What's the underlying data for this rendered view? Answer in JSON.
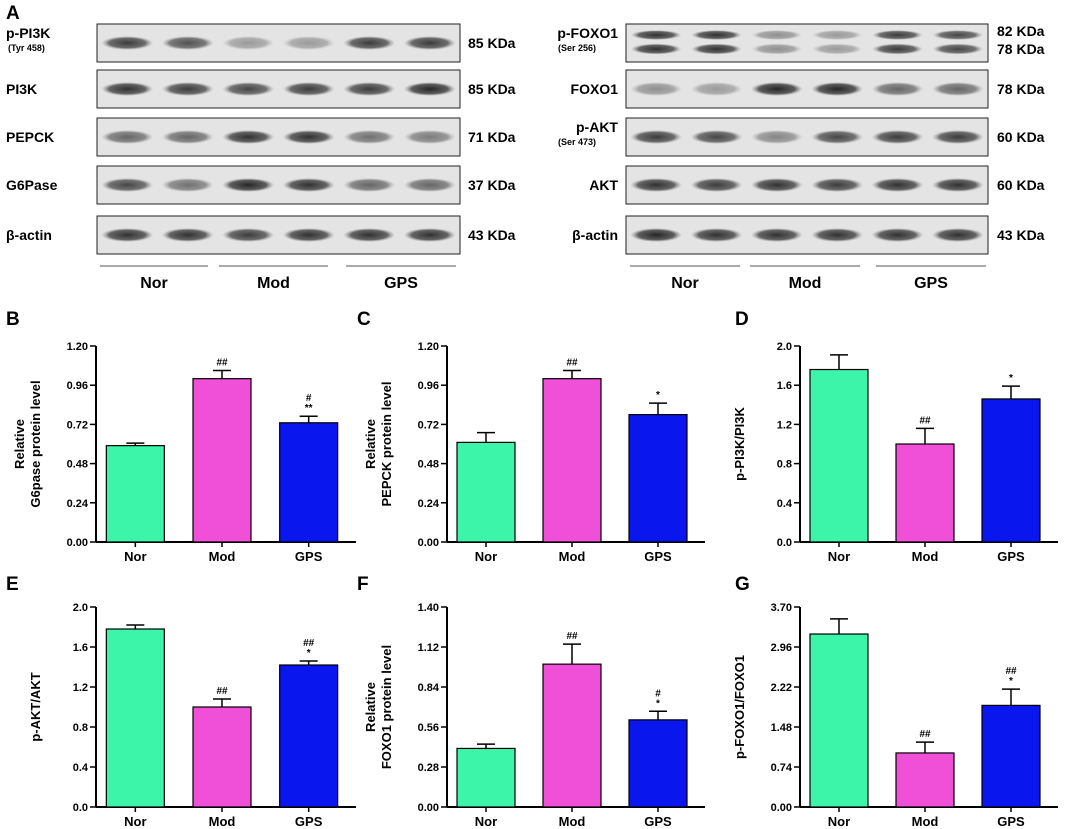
{
  "panel_A": {
    "letter": "A",
    "left_blots": [
      {
        "label": "p-PI3K",
        "sub": "(Tyr 458)",
        "kda": [
          "85 KDa"
        ],
        "bands": [
          0.8,
          0.7,
          0.35,
          0.35,
          0.8,
          0.8
        ],
        "double": false
      },
      {
        "label": "PI3K",
        "sub": "",
        "kda": [
          "85 KDa"
        ],
        "bands": [
          0.85,
          0.8,
          0.75,
          0.8,
          0.8,
          0.9
        ],
        "double": false
      },
      {
        "label": "PEPCK",
        "sub": "",
        "kda": [
          "71 KDa"
        ],
        "bands": [
          0.6,
          0.6,
          0.85,
          0.85,
          0.55,
          0.5
        ],
        "double": false
      },
      {
        "label": "G6Pase",
        "sub": "",
        "kda": [
          "37 KDa"
        ],
        "bands": [
          0.75,
          0.55,
          0.9,
          0.85,
          0.6,
          0.6
        ],
        "double": false
      },
      {
        "label": "β-actin",
        "sub": "",
        "kda": [
          "43 KDa"
        ],
        "bands": [
          0.85,
          0.85,
          0.8,
          0.85,
          0.85,
          0.85
        ],
        "double": false
      }
    ],
    "right_blots": [
      {
        "label": "p-FOXO1",
        "sub": "(Ser 256)",
        "kda": [
          "82 KDa",
          "78 KDa"
        ],
        "bands": [
          0.85,
          0.85,
          0.4,
          0.35,
          0.8,
          0.75
        ],
        "double": true
      },
      {
        "label": "FOXO1",
        "sub": "",
        "kda": [
          "78 KDa"
        ],
        "bands": [
          0.4,
          0.35,
          0.9,
          0.9,
          0.6,
          0.6
        ],
        "double": false
      },
      {
        "label": "p-AKT",
        "sub": "(Ser 473)",
        "kda": [
          "60 KDa"
        ],
        "bands": [
          0.8,
          0.75,
          0.45,
          0.75,
          0.8,
          0.8
        ],
        "double": false
      },
      {
        "label": "AKT",
        "sub": "",
        "kda": [
          "60 KDa"
        ],
        "bands": [
          0.85,
          0.8,
          0.85,
          0.8,
          0.85,
          0.85
        ],
        "double": false
      },
      {
        "label": "β-actin",
        "sub": "",
        "kda": [
          "43 KDa"
        ],
        "bands": [
          0.9,
          0.85,
          0.85,
          0.85,
          0.85,
          0.85
        ],
        "double": false
      }
    ],
    "groups": [
      "Nor",
      "Mod",
      "GPS"
    ]
  },
  "colors": {
    "Nor": "#3df5a9",
    "Mod": "#f04fd8",
    "GPS": "#0a16ee"
  },
  "chart_data": [
    {
      "letter": "B",
      "type": "bar",
      "categories": [
        "Nor",
        "Mod",
        "GPS"
      ],
      "values": [
        0.59,
        1.0,
        0.73
      ],
      "errors": [
        0.015,
        0.05,
        0.04
      ],
      "ylabel": [
        "Relative",
        "G6pase protein level"
      ],
      "ylim": [
        0,
        1.2
      ],
      "ticks": [
        "0.00",
        "0.24",
        "0.48",
        "0.72",
        "0.96",
        "1.20"
      ],
      "annotations": [
        [],
        [
          "##"
        ],
        [
          "#",
          "**"
        ]
      ]
    },
    {
      "letter": "C",
      "type": "bar",
      "categories": [
        "Nor",
        "Mod",
        "GPS"
      ],
      "values": [
        0.61,
        1.0,
        0.78
      ],
      "errors": [
        0.06,
        0.05,
        0.07
      ],
      "ylabel": [
        "Relative",
        "PEPCK protein level"
      ],
      "ylim": [
        0,
        1.2
      ],
      "ticks": [
        "0.00",
        "0.24",
        "0.48",
        "0.72",
        "0.96",
        "1.20"
      ],
      "annotations": [
        [],
        [
          "##"
        ],
        [
          "*"
        ]
      ]
    },
    {
      "letter": "D",
      "type": "bar",
      "categories": [
        "Nor",
        "Mod",
        "GPS"
      ],
      "values": [
        1.76,
        1.0,
        1.46
      ],
      "errors": [
        0.15,
        0.16,
        0.13
      ],
      "ylabel": [
        "p-PI3K/PI3K"
      ],
      "ylim": [
        0,
        2.0
      ],
      "ticks": [
        "0.0",
        "0.4",
        "0.8",
        "1.2",
        "1.6",
        "2.0"
      ],
      "annotations": [
        [],
        [
          "##"
        ],
        [
          "*"
        ]
      ]
    },
    {
      "letter": "E",
      "type": "bar",
      "categories": [
        "Nor",
        "Mod",
        "GPS"
      ],
      "values": [
        1.78,
        1.0,
        1.42
      ],
      "errors": [
        0.04,
        0.08,
        0.04
      ],
      "ylabel": [
        "p-AKT/AKT"
      ],
      "ylim": [
        0,
        2.0
      ],
      "ticks": [
        "0.0",
        "0.4",
        "0.8",
        "1.2",
        "1.6",
        "2.0"
      ],
      "annotations": [
        [],
        [
          "##"
        ],
        [
          "##",
          "*"
        ]
      ]
    },
    {
      "letter": "F",
      "type": "bar",
      "categories": [
        "Nor",
        "Mod",
        "GPS"
      ],
      "values": [
        0.41,
        1.0,
        0.61
      ],
      "errors": [
        0.03,
        0.14,
        0.06
      ],
      "ylabel": [
        "Relative",
        "FOXO1 protein level"
      ],
      "ylim": [
        0,
        1.4
      ],
      "ticks": [
        "0.00",
        "0.28",
        "0.56",
        "0.84",
        "1.12",
        "1.40"
      ],
      "annotations": [
        [],
        [
          "##"
        ],
        [
          "#",
          "*"
        ]
      ]
    },
    {
      "letter": "G",
      "type": "bar",
      "categories": [
        "Nor",
        "Mod",
        "GPS"
      ],
      "values": [
        3.2,
        1.0,
        1.88
      ],
      "errors": [
        0.28,
        0.2,
        0.3
      ],
      "ylabel": [
        "p-FOXO1/FOXO1"
      ],
      "ylim": [
        0,
        3.7
      ],
      "ticks": [
        "0.00",
        "0.74",
        "1.48",
        "2.22",
        "2.96",
        "3.70"
      ],
      "annotations": [
        [],
        [
          "##"
        ],
        [
          "##",
          "*"
        ]
      ]
    }
  ]
}
